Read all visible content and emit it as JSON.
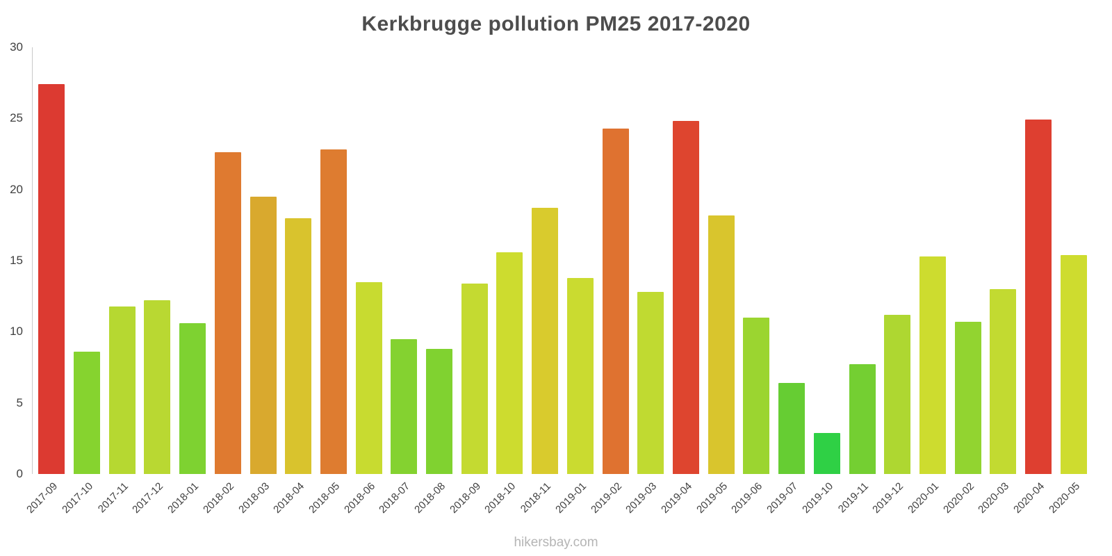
{
  "chart": {
    "title": "Kerkbrugge pollution PM25 2017-2020",
    "footer": "hikersbay.com"
  },
  "chart_data": {
    "type": "bar",
    "title": "Kerkbrugge pollution PM25 2017-2020",
    "xlabel": "",
    "ylabel": "",
    "ylim": [
      0,
      30
    ],
    "yticks": [
      0,
      5,
      10,
      15,
      20,
      25,
      30
    ],
    "grid": false,
    "legend": "none",
    "categories": [
      "2017-09",
      "2017-10",
      "2017-11",
      "2017-12",
      "2018-01",
      "2018-02",
      "2018-03",
      "2018-04",
      "2018-05",
      "2018-06",
      "2018-07",
      "2018-08",
      "2018-09",
      "2018-10",
      "2018-11",
      "2019-01",
      "2019-02",
      "2019-03",
      "2019-04",
      "2019-05",
      "2019-06",
      "2019-07",
      "2019-10",
      "2019-11",
      "2019-12",
      "2020-01",
      "2020-02",
      "2020-03",
      "2020-04",
      "2020-05"
    ],
    "values": [
      27.4,
      8.6,
      11.8,
      12.2,
      10.6,
      22.6,
      19.5,
      18.0,
      22.8,
      13.5,
      9.5,
      8.8,
      13.4,
      15.6,
      18.7,
      13.8,
      24.3,
      12.8,
      24.8,
      18.2,
      11.0,
      6.4,
      2.9,
      7.7,
      11.2,
      15.3,
      10.7,
      13.0,
      24.9,
      15.4
    ],
    "bar_colors": [
      "#dc3a31",
      "#86d32f",
      "#b6d831",
      "#b9d832",
      "#7ed231",
      "#df7a30",
      "#d9a92e",
      "#d9c32d",
      "#de7c30",
      "#c8db30",
      "#84d230",
      "#80d230",
      "#c4da31",
      "#cddc2f",
      "#d9cb2d",
      "#cadb30",
      "#df7230",
      "#c0da31",
      "#de452f",
      "#d9c52d",
      "#9bd530",
      "#66cd33",
      "#2fd045",
      "#74cf32",
      "#aed731",
      "#cddc2f",
      "#92d430",
      "#c2da31",
      "#de3f30",
      "#cedc2f"
    ],
    "value_color_legend": {
      "red": "#dc3a31",
      "orange": "#df7230",
      "yellow": "#d9c32d",
      "lime": "#c4da31",
      "green": "#7ed231",
      "bright_green": "#2fd045"
    }
  }
}
